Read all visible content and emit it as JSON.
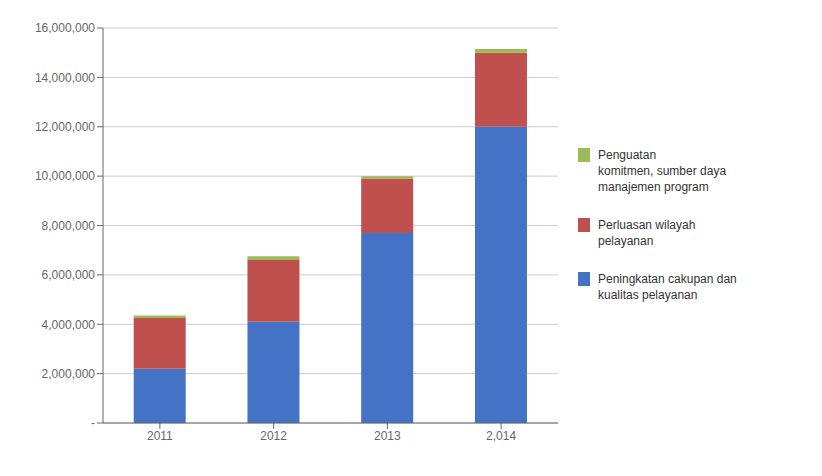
{
  "chart_data": {
    "type": "bar",
    "stacked": true,
    "grid": true,
    "legend": "right",
    "categories": [
      "2011",
      "2012",
      "2013",
      "2,014"
    ],
    "series": [
      {
        "name": "Peningkatan cakupan dan\nkualitas pelayanan",
        "color": "#4472C4",
        "values": [
          2200000,
          4100000,
          7700000,
          12000000
        ]
      },
      {
        "name": "Perluasan wilayah\npelayanan",
        "color": "#C0504D",
        "values": [
          2050000,
          2500000,
          2200000,
          3000000
        ]
      },
      {
        "name": "Penguatan\nkomitmen, sumber daya\nmanajemen program",
        "color": "#9BBB59",
        "values": [
          100000,
          150000,
          100000,
          150000
        ]
      }
    ],
    "ylim": [
      0,
      16000000
    ],
    "yticks": [
      {
        "value": 0,
        "label": "-"
      },
      {
        "value": 2000000,
        "label": "2,000,000"
      },
      {
        "value": 4000000,
        "label": "4,000,000"
      },
      {
        "value": 6000000,
        "label": "6,000,000"
      },
      {
        "value": 8000000,
        "label": "8,000,000"
      },
      {
        "value": 10000000,
        "label": "10,000,000"
      },
      {
        "value": 12000000,
        "label": "12,000,000"
      },
      {
        "value": 14000000,
        "label": "14,000,000"
      },
      {
        "value": 16000000,
        "label": "16,000,000"
      }
    ]
  }
}
